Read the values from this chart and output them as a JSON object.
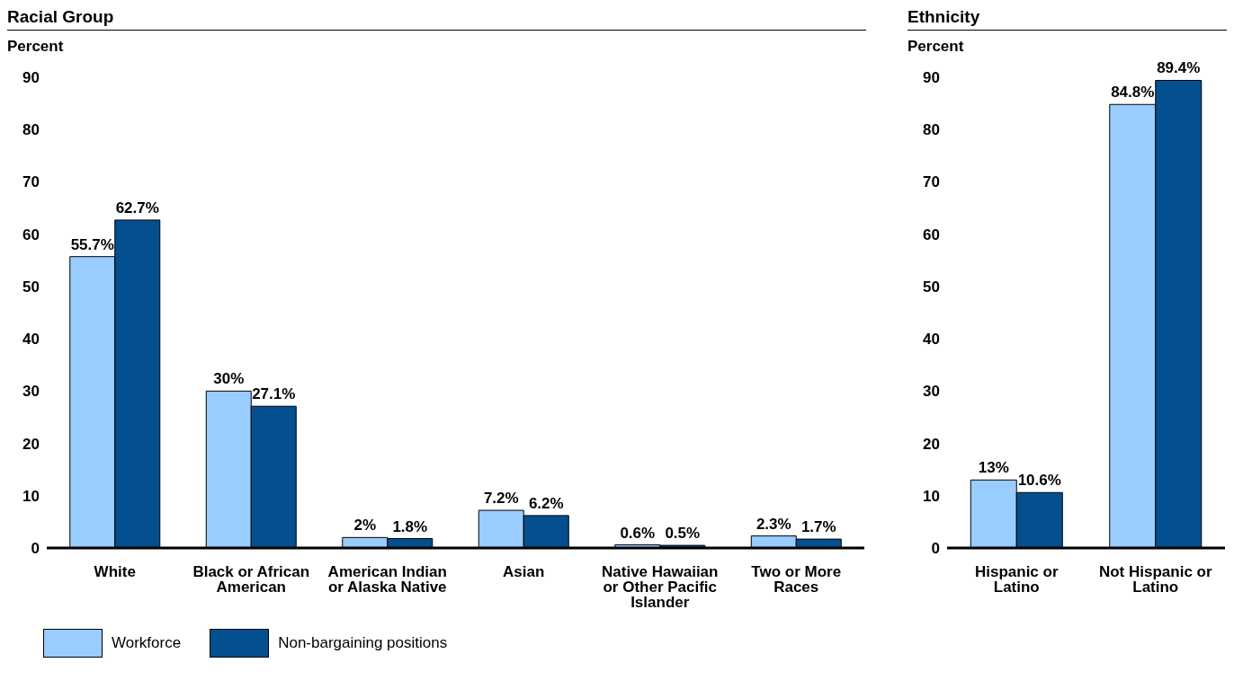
{
  "chart_data": [
    {
      "type": "bar",
      "title": "Racial Group",
      "ylabel": "Percent",
      "categories": [
        "White",
        "Black or African American",
        "American Indian or Alaska Native",
        "Asian",
        "Native Hawaiian or Other Pacific Islander",
        "Two or More Races"
      ],
      "series": [
        {
          "name": "Workforce",
          "color": "#99ccff",
          "values": [
            55.7,
            30,
            2,
            7.2,
            0.6,
            2.3
          ],
          "value_labels": [
            "55.7%",
            "30%",
            "2%",
            "7.2%",
            "0.6%",
            "2.3%"
          ]
        },
        {
          "name": "Non-bargaining positions",
          "color": "#034f8f",
          "values": [
            62.7,
            27.1,
            1.8,
            6.2,
            0.5,
            1.7
          ],
          "value_labels": [
            "62.7%",
            "27.1%",
            "1.8%",
            "6.2%",
            "0.5%",
            "1.7%"
          ]
        }
      ],
      "ylim": [
        0,
        90
      ],
      "yticks": [
        0,
        10,
        20,
        30,
        40,
        50,
        60,
        70,
        80,
        90
      ],
      "grid": false,
      "legend": "bottom"
    },
    {
      "type": "bar",
      "title": "Ethnicity",
      "ylabel": "Percent",
      "categories": [
        "Hispanic or Latino",
        "Not Hispanic or Latino"
      ],
      "series": [
        {
          "color": "#99ccff",
          "values": [
            13,
            84.8
          ],
          "value_labels": [
            "13%",
            "84.8%"
          ]
        },
        {
          "color": "#034f8f",
          "values": [
            10.6,
            89.4
          ],
          "value_labels": [
            "10.6%",
            "89.4%"
          ]
        }
      ],
      "ylim": [
        0,
        90
      ],
      "yticks": [
        0,
        10,
        20,
        30,
        40,
        50,
        60,
        70,
        80,
        90
      ],
      "grid": false
    }
  ]
}
